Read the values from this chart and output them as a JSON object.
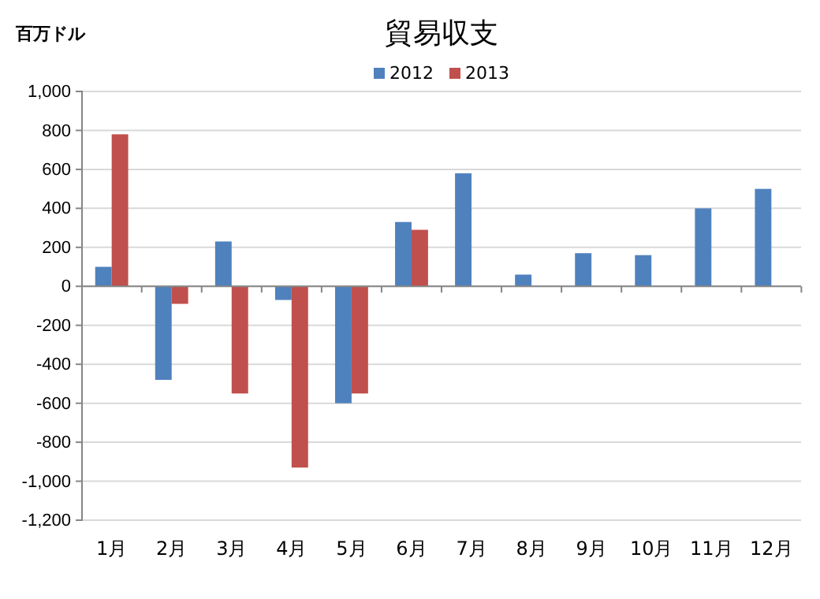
{
  "chart_data": {
    "type": "bar",
    "title": "貿易収支",
    "ylabel": "百万ドル",
    "categories": [
      "1月",
      "2月",
      "3月",
      "4月",
      "5月",
      "6月",
      "7月",
      "8月",
      "9月",
      "10月",
      "11月",
      "12月"
    ],
    "series": [
      {
        "name": "2012",
        "color": "#4f81bd",
        "values": [
          100,
          -480,
          230,
          -70,
          -600,
          330,
          580,
          60,
          170,
          160,
          400,
          500
        ]
      },
      {
        "name": "2013",
        "color": "#c0504d",
        "values": [
          780,
          -90,
          -550,
          -930,
          -550,
          290,
          null,
          null,
          null,
          null,
          null,
          null
        ]
      }
    ],
    "ylim": [
      -1200,
      1000
    ],
    "yticks": [
      {
        "value": -1200,
        "label": "-1,200"
      },
      {
        "value": -1000,
        "label": "-1,000"
      },
      -800,
      -600,
      -400,
      -200,
      0,
      200,
      400,
      600,
      800,
      {
        "value": 1000,
        "label": "1,000"
      }
    ],
    "grid": "y",
    "legend": "top"
  }
}
